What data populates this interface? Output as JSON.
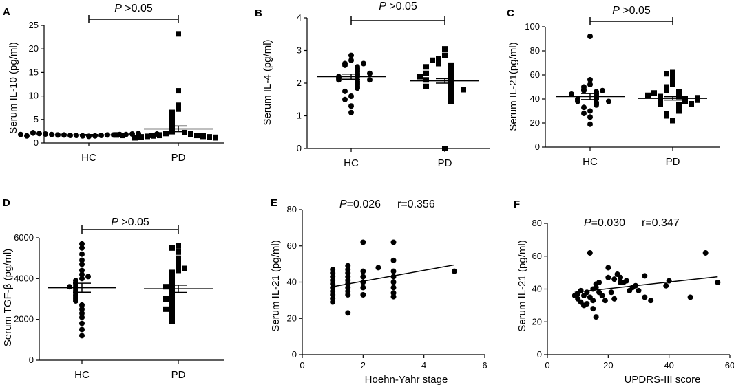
{
  "chart_data": [
    {
      "id": "A",
      "panel_label": "A",
      "type": "scatter-dot",
      "ylabel": "Serum IL-10 (pg/ml)",
      "xlabel": "",
      "ylim": [
        0,
        25
      ],
      "yticks": [
        "0",
        "5",
        "10",
        "15",
        "20",
        "25"
      ],
      "ytick_values": [
        0,
        5,
        10,
        15,
        20,
        25
      ],
      "categories": [
        "HC",
        "PD"
      ],
      "markers": [
        "circle",
        "square"
      ],
      "groups": [
        {
          "name": "HC",
          "mean": 1.7,
          "sem": 0.1,
          "values": [
            1.4,
            1.5,
            1.5,
            1.6,
            1.6,
            1.6,
            1.7,
            1.7,
            1.7,
            1.7,
            1.8,
            1.8,
            1.8,
            1.9,
            1.9,
            2.0,
            2.0,
            2.1,
            2.2,
            1.5,
            1.6,
            1.8,
            1.9
          ]
        },
        {
          "name": "PD",
          "mean": 3.0,
          "sem": 0.6,
          "values": [
            23.2,
            11.1,
            8.0,
            7.2,
            6.5,
            5.8,
            5.2,
            4.6,
            4.2,
            3.5,
            3.3,
            2.6,
            2.4,
            2.2,
            2.0,
            1.9,
            1.8,
            1.7,
            1.6,
            1.6,
            1.5,
            1.5,
            1.4,
            1.4,
            1.3,
            1.3,
            1.2,
            1.2,
            1.1,
            1.1,
            1.6,
            1.7
          ]
        }
      ],
      "significance": {
        "p_italic": "P",
        "text": " >0.05"
      }
    },
    {
      "id": "B",
      "panel_label": "B",
      "type": "scatter-dot",
      "ylabel": "Serum IL-4 (pg/ml)",
      "xlabel": "",
      "ylim": [
        0,
        4
      ],
      "yticks": [
        "0",
        "1",
        "2",
        "3",
        "4"
      ],
      "ytick_values": [
        0,
        1,
        2,
        3,
        4
      ],
      "categories": [
        "HC",
        "PD"
      ],
      "markers": [
        "circle",
        "square"
      ],
      "groups": [
        {
          "name": "HC",
          "mean": 2.2,
          "sem": 0.08,
          "values": [
            2.85,
            2.7,
            2.6,
            2.55,
            2.5,
            2.45,
            2.4,
            2.35,
            2.3,
            2.25,
            2.2,
            2.2,
            2.15,
            2.1,
            2.05,
            2.0,
            1.95,
            1.9,
            1.85,
            1.75,
            1.6,
            1.5,
            1.3,
            1.1,
            2.6,
            2.3,
            2.1
          ]
        },
        {
          "name": "PD",
          "mean": 2.07,
          "sem": 0.07,
          "values": [
            3.05,
            2.85,
            2.75,
            2.65,
            2.6,
            2.55,
            2.5,
            2.45,
            2.4,
            2.35,
            2.3,
            2.25,
            2.2,
            2.15,
            2.1,
            2.05,
            2.0,
            1.95,
            1.9,
            1.85,
            1.8,
            1.75,
            1.7,
            1.65,
            1.6,
            1.55,
            1.5,
            1.45,
            0.0,
            2.3,
            2.1,
            1.9,
            2.5,
            2.7,
            1.8,
            2.2
          ]
        }
      ],
      "significance": {
        "p_italic": "P",
        "text": " >0.05"
      }
    },
    {
      "id": "C",
      "panel_label": "C",
      "type": "scatter-dot",
      "ylabel": "Serum IL-21(pg/ml)",
      "xlabel": "",
      "ylim": [
        0,
        100
      ],
      "yticks": [
        "0",
        "20",
        "40",
        "60",
        "80",
        "100"
      ],
      "ytick_values": [
        0,
        20,
        40,
        60,
        80,
        100
      ],
      "categories": [
        "HC",
        "PD"
      ],
      "markers": [
        "circle",
        "square"
      ],
      "groups": [
        {
          "name": "HC",
          "mean": 42,
          "sem": 2.5,
          "values": [
            92,
            56,
            52,
            50,
            48,
            47,
            46,
            45,
            44,
            43,
            42,
            41,
            40,
            40,
            39,
            38,
            37,
            36,
            35,
            33,
            30,
            28,
            25,
            19,
            47,
            44,
            38
          ]
        },
        {
          "name": "PD",
          "mean": 40.5,
          "sem": 1.4,
          "values": [
            62,
            61,
            58,
            55,
            52,
            50,
            48,
            47,
            46,
            45,
            44,
            43,
            42,
            42,
            41,
            40,
            40,
            39,
            38,
            38,
            37,
            36,
            35,
            34,
            33,
            32,
            31,
            30,
            28,
            26,
            22,
            45,
            43,
            41,
            39,
            36
          ]
        }
      ],
      "significance": {
        "p_italic": "P",
        "text": " >0.05"
      }
    },
    {
      "id": "D",
      "panel_label": "D",
      "type": "scatter-dot",
      "ylabel": "Serum TGF-β (pg/ml)",
      "xlabel": "",
      "ylim": [
        0,
        6000
      ],
      "yticks": [
        "0",
        "2000",
        "4000",
        "6000"
      ],
      "ytick_values": [
        0,
        2000,
        4000,
        6000
      ],
      "categories": [
        "HC",
        "PD"
      ],
      "markers": [
        "circle",
        "square"
      ],
      "groups": [
        {
          "name": "HC",
          "mean": 3550,
          "sem": 220,
          "values": [
            5700,
            5500,
            5200,
            4900,
            4700,
            4400,
            4200,
            4000,
            3900,
            3800,
            3700,
            3600,
            3500,
            3400,
            3300,
            3200,
            3100,
            3000,
            2900,
            2700,
            2500,
            2300,
            2100,
            1800,
            1500,
            1200,
            4100,
            3600
          ]
        },
        {
          "name": "PD",
          "mean": 3500,
          "sem": 180,
          "values": [
            5600,
            5500,
            5300,
            5000,
            4800,
            4600,
            4400,
            4300,
            4200,
            4100,
            4000,
            3900,
            3800,
            3700,
            3600,
            3500,
            3400,
            3300,
            3200,
            3100,
            3000,
            2900,
            2800,
            2700,
            2600,
            2500,
            2400,
            2300,
            2200,
            2100,
            2000,
            1900,
            4500,
            3600,
            3000,
            2500
          ]
        }
      ],
      "significance": {
        "p_italic": "P",
        "text": " >0.05"
      }
    },
    {
      "id": "E",
      "panel_label": "E",
      "type": "scatter",
      "ylabel": "Serum IL-21 (pg/ml)",
      "xlabel": "Hoehn-Yahr stage",
      "xlim": [
        0,
        6
      ],
      "xticks": [
        "0",
        "2",
        "4",
        "6"
      ],
      "xtick_values": [
        0,
        2,
        4,
        6
      ],
      "ylim": [
        0,
        80
      ],
      "yticks": [
        "0",
        "20",
        "40",
        "60",
        "80"
      ],
      "ytick_values": [
        0,
        20,
        40,
        60,
        80
      ],
      "points": [
        [
          1,
          47
        ],
        [
          1,
          45
        ],
        [
          1,
          43
        ],
        [
          1,
          41
        ],
        [
          1,
          39
        ],
        [
          1,
          37
        ],
        [
          1,
          35
        ],
        [
          1,
          33
        ],
        [
          1,
          31
        ],
        [
          1,
          29
        ],
        [
          1.5,
          49
        ],
        [
          1.5,
          47
        ],
        [
          1.5,
          45
        ],
        [
          1.5,
          43
        ],
        [
          1.5,
          41
        ],
        [
          1.5,
          39
        ],
        [
          1.5,
          37
        ],
        [
          1.5,
          35
        ],
        [
          1.5,
          33
        ],
        [
          1.5,
          23
        ],
        [
          2,
          62
        ],
        [
          2,
          46
        ],
        [
          2,
          43
        ],
        [
          2,
          40
        ],
        [
          2,
          37
        ],
        [
          2,
          33
        ],
        [
          2.5,
          48
        ],
        [
          3,
          62
        ],
        [
          3,
          52
        ],
        [
          3,
          46
        ],
        [
          3,
          43
        ],
        [
          3,
          40
        ],
        [
          3,
          37
        ],
        [
          3,
          34
        ],
        [
          3,
          32
        ],
        [
          5,
          46
        ]
      ],
      "fit": {
        "x": [
          1,
          5
        ],
        "y": [
          37.5,
          49.5
        ]
      },
      "stat": {
        "p_italic": "P",
        "p_text": "=0.026",
        "r_text": "r=0.356"
      }
    },
    {
      "id": "F",
      "panel_label": "F",
      "type": "scatter",
      "ylabel": "Serum IL-21 (pg/ml)",
      "xlabel": "UPDRS-III score",
      "xlim": [
        0,
        60
      ],
      "xticks": [
        "0",
        "20",
        "40",
        "60"
      ],
      "xtick_values": [
        0,
        20,
        40,
        60
      ],
      "ylim": [
        0,
        80
      ],
      "yticks": [
        "0",
        "20",
        "40",
        "60",
        "80"
      ],
      "ytick_values": [
        0,
        20,
        40,
        60,
        80
      ],
      "points": [
        [
          9,
          36
        ],
        [
          10,
          37
        ],
        [
          10,
          34
        ],
        [
          11,
          39
        ],
        [
          11,
          32
        ],
        [
          12,
          36
        ],
        [
          12,
          30
        ],
        [
          13,
          38
        ],
        [
          13,
          31
        ],
        [
          14,
          35
        ],
        [
          14,
          62
        ],
        [
          15,
          40
        ],
        [
          15,
          33
        ],
        [
          15,
          28
        ],
        [
          16,
          43
        ],
        [
          16,
          41
        ],
        [
          16,
          23
        ],
        [
          17,
          44
        ],
        [
          17,
          38
        ],
        [
          18,
          36
        ],
        [
          19,
          33
        ],
        [
          20,
          47
        ],
        [
          20,
          53
        ],
        [
          21,
          38
        ],
        [
          22,
          46
        ],
        [
          22,
          34
        ],
        [
          23,
          49
        ],
        [
          24,
          47
        ],
        [
          25,
          44
        ],
        [
          26,
          45
        ],
        [
          27,
          39
        ],
        [
          28,
          41
        ],
        [
          29,
          42
        ],
        [
          30,
          39
        ],
        [
          32,
          48
        ],
        [
          32,
          35
        ],
        [
          34,
          33
        ],
        [
          39,
          42
        ],
        [
          40,
          45
        ],
        [
          47,
          35
        ],
        [
          52,
          62
        ],
        [
          56,
          44
        ],
        [
          26,
          45
        ],
        [
          24,
          44
        ]
      ],
      "fit": {
        "x": [
          9,
          56
        ],
        "y": [
          38,
          47.5
        ]
      },
      "stat": {
        "p_italic": "P",
        "p_text": "=0.030",
        "r_text": "r=0.347"
      }
    }
  ]
}
